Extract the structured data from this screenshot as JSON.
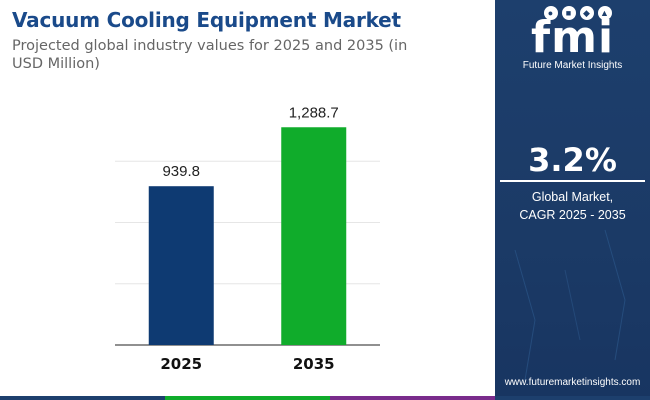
{
  "header": {
    "title": "Vacuum Cooling Equipment Market",
    "subtitle": "Projected global industry values for 2025 and 2035 (in USD Million)"
  },
  "chart_data": {
    "type": "bar",
    "categories": [
      "2025",
      "2035"
    ],
    "values": [
      939.8,
      1288.7
    ],
    "value_labels": [
      "939.8",
      "1,288.7"
    ],
    "bar_colors": [
      "#0e3a72",
      "#10ac2b"
    ],
    "ylim": [
      0,
      1450
    ],
    "grid": true,
    "xlabel": "",
    "ylabel": ""
  },
  "sidebar": {
    "logo_text": "fmi",
    "logo_subtitle": "Future Market Insights",
    "cagr_value": "3.2%",
    "cagr_label_line1": "Global Market,",
    "cagr_label_line2": "CAGR 2025 - 2035",
    "website": "www.futuremarketinsights.com",
    "background_color": "#1d3f6d"
  },
  "footer_colors": [
    "#1d3f6d",
    "#10ac2b",
    "#7a2c8c",
    "#1d3f6d"
  ]
}
